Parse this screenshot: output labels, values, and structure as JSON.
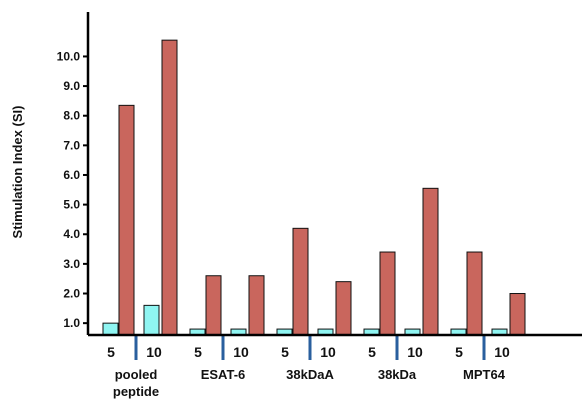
{
  "chart_data": {
    "type": "bar",
    "ylabel": "Stimulation Index (SI)",
    "ylim": [
      0.6,
      11.5
    ],
    "yticks": [
      "1.0",
      "2.0",
      "3.0",
      "4.0",
      "5.0",
      "6.0",
      "7.0",
      "8.0",
      "9.0",
      "10.0"
    ],
    "groups": [
      {
        "label": "pooled peptide",
        "label_lines": [
          "pooled",
          "peptide"
        ],
        "subgroups": [
          {
            "label": "5",
            "values": [
              1.0,
              8.35
            ]
          },
          {
            "label": "10",
            "values": [
              1.6,
              10.55
            ]
          }
        ]
      },
      {
        "label": "ESAT-6",
        "label_lines": [
          "ESAT-6"
        ],
        "subgroups": [
          {
            "label": "5",
            "values": [
              0.8,
              2.6
            ]
          },
          {
            "label": "10",
            "values": [
              0.8,
              2.6
            ]
          }
        ]
      },
      {
        "label": "38kDaA",
        "label_lines": [
          "38kDaA"
        ],
        "subgroups": [
          {
            "label": "5",
            "values": [
              0.8,
              4.2
            ]
          },
          {
            "label": "10",
            "values": [
              0.8,
              2.4
            ]
          }
        ]
      },
      {
        "label": "38kDa",
        "label_lines": [
          "38kDa"
        ],
        "subgroups": [
          {
            "label": "5",
            "values": [
              0.8,
              3.4
            ]
          },
          {
            "label": "10",
            "values": [
              0.8,
              5.55
            ]
          }
        ]
      },
      {
        "label": "MPT64",
        "label_lines": [
          "MPT64"
        ],
        "subgroups": [
          {
            "label": "5",
            "values": [
              0.8,
              3.4
            ]
          },
          {
            "label": "10",
            "values": [
              0.8,
              2.0
            ]
          }
        ]
      }
    ],
    "series_colors": [
      "#8ff5f2",
      "#c9665d"
    ],
    "divider_color": "#2a5f9e",
    "grid": false
  }
}
